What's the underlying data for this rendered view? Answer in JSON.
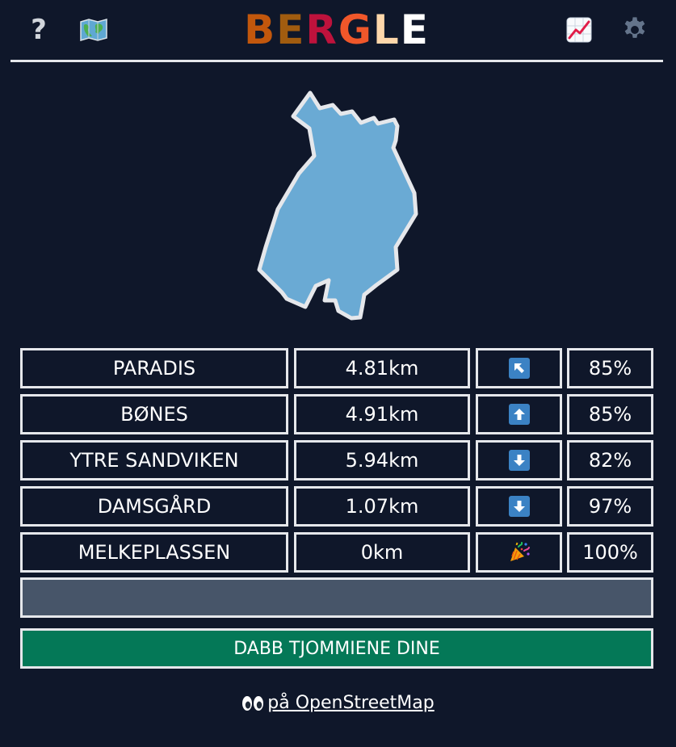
{
  "header": {
    "help_icon": "question-mark-icon",
    "map_icon": "map-icon",
    "stats_icon": "chart-increasing-icon",
    "settings_icon": "gear-icon",
    "logo_letters": [
      {
        "char": "B",
        "color": "#c2570c"
      },
      {
        "char": "E",
        "color": "#a15c0f"
      },
      {
        "char": "R",
        "color": "#be123c"
      },
      {
        "char": "G",
        "color": "#f0572a"
      },
      {
        "char": "L",
        "color": "#fed7aa"
      },
      {
        "char": "E",
        "color": "#ffffff"
      }
    ]
  },
  "shape": {
    "fill": "#6aaad4",
    "stroke": "#e5e7eb"
  },
  "guesses": [
    {
      "name": "PARADIS",
      "distance": "4.81km",
      "direction": "up-left",
      "percent": "85%"
    },
    {
      "name": "BØNES",
      "distance": "4.91km",
      "direction": "up",
      "percent": "85%"
    },
    {
      "name": "YTRE SANDVIKEN",
      "distance": "5.94km",
      "direction": "down",
      "percent": "82%"
    },
    {
      "name": "DAMSGÅRD",
      "distance": "1.07km",
      "direction": "down",
      "percent": "97%"
    },
    {
      "name": "MELKEPLASSEN",
      "distance": "0km",
      "direction": "party-popper",
      "percent": "100%"
    }
  ],
  "guess_input": {
    "value": "",
    "placeholder": ""
  },
  "share_button": {
    "label": "DABB TJOMMIENE DINE"
  },
  "footer": {
    "eyes_icon": "eyes-icon",
    "link_text": "på OpenStreetMap"
  },
  "colors": {
    "background": "#0f172a",
    "border": "#e5e7eb",
    "input_bg": "#475569",
    "button_bg": "#047857",
    "arrow_bg": "#3b82c4"
  }
}
